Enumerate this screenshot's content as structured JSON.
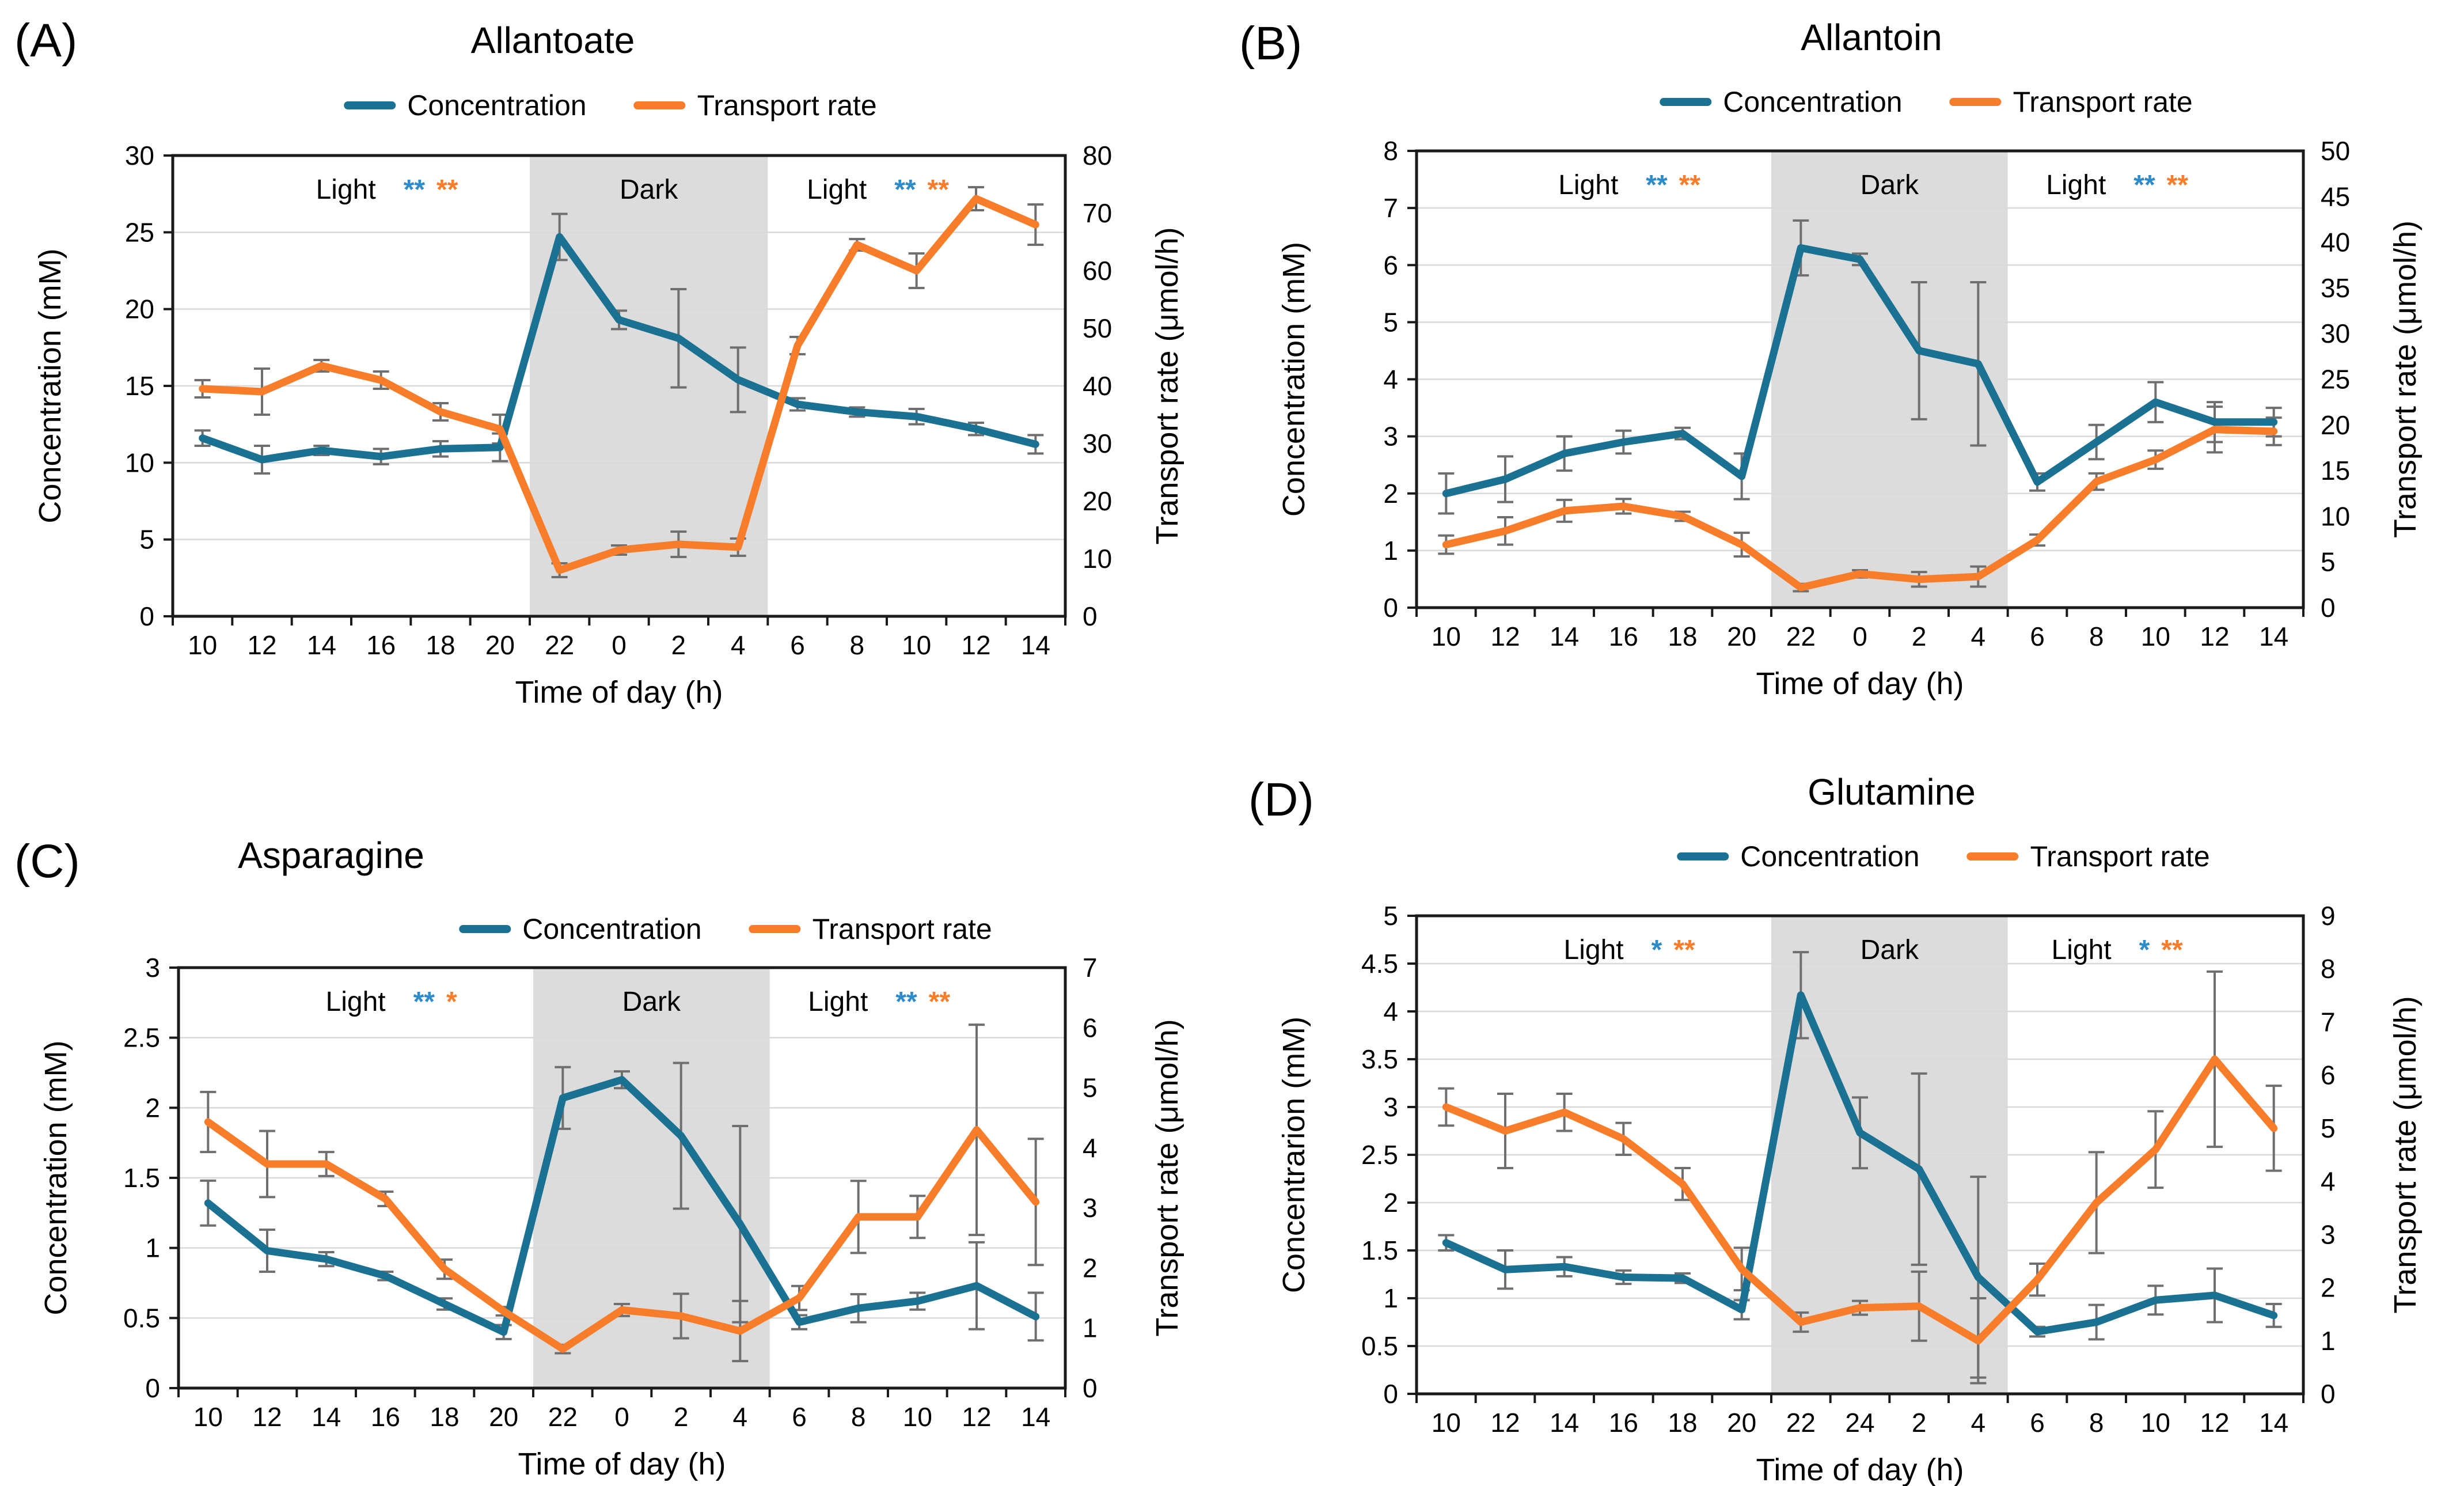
{
  "colors": {
    "concentration": "#1a7191",
    "transport": "#f77d2a",
    "sig_concentration": "#2e8bc9",
    "sig_transport": "#f77d2a",
    "dark_band": "#dcdcdc",
    "gridline": "#d9d9d9",
    "error_bar": "#6f6f6f",
    "frame": "#1a1a1a"
  },
  "figure": {
    "panels": [
      {
        "id": "A",
        "label": "(A)",
        "title": "Allantoate",
        "legend": {
          "concentration": "Concentration",
          "transport": "Transport rate"
        },
        "zones": {
          "light1": {
            "label": "Light",
            "sig_concentration": "**",
            "sig_transport": "**"
          },
          "dark": {
            "label": "Dark"
          },
          "light2": {
            "label": "Light",
            "sig_concentration": "**",
            "sig_transport": "**"
          }
        }
      },
      {
        "id": "B",
        "label": "(B)",
        "title": "Allantoin",
        "legend": {
          "concentration": "Concentration",
          "transport": "Transport rate"
        },
        "zones": {
          "light1": {
            "label": "Light",
            "sig_concentration": "**",
            "sig_transport": "**"
          },
          "dark": {
            "label": "Dark"
          },
          "light2": {
            "label": "Light",
            "sig_concentration": "**",
            "sig_transport": "**"
          }
        }
      },
      {
        "id": "C",
        "label": "(C)",
        "title": "Asparagine",
        "legend": {
          "concentration": "Concentration",
          "transport": "Transport rate"
        },
        "zones": {
          "light1": {
            "label": "Light",
            "sig_concentration": "**",
            "sig_transport": "*"
          },
          "dark": {
            "label": "Dark"
          },
          "light2": {
            "label": "Light",
            "sig_concentration": "**",
            "sig_transport": "**"
          }
        }
      },
      {
        "id": "D",
        "label": "(D)",
        "title": "Glutamine",
        "legend": {
          "concentration": "Concentration",
          "transport": "Transport rate"
        },
        "zones": {
          "light1": {
            "label": "Light",
            "sig_concentration": "*",
            "sig_transport": "**"
          },
          "dark": {
            "label": "Dark"
          },
          "light2": {
            "label": "Light",
            "sig_concentration": "*",
            "sig_transport": "**"
          }
        }
      }
    ]
  },
  "chart_data": [
    {
      "type": "line",
      "title": "Allantoate",
      "x": {
        "label": "Time of day (h)",
        "categories": [
          "10",
          "12",
          "14",
          "16",
          "18",
          "20",
          "22",
          "0",
          "2",
          "4",
          "6",
          "8",
          "10",
          "12",
          "14"
        ]
      },
      "y_left": {
        "label": "Concentration (mM)",
        "range": [
          0,
          30
        ],
        "tick_labels": [
          "0",
          "5",
          "10",
          "15",
          "20",
          "25",
          "30"
        ]
      },
      "y_right": {
        "label": "Transport rate (μmol/h)",
        "range": [
          0,
          80
        ],
        "tick_labels": [
          "0",
          "10",
          "20",
          "30",
          "40",
          "50",
          "60",
          "70",
          "80"
        ]
      },
      "dark_period": {
        "from_hour": 21,
        "to_hour": 5,
        "from_index": 5.5,
        "to_index": 9.5
      },
      "series": [
        {
          "name": "Concentration",
          "axis": "left",
          "color_key": "concentration",
          "values": [
            11.6,
            10.2,
            10.8,
            10.4,
            10.9,
            11.0,
            24.7,
            19.3,
            18.1,
            15.4,
            13.8,
            13.3,
            13.0,
            12.2,
            11.2
          ],
          "errors": [
            0.5,
            0.9,
            0.3,
            0.5,
            0.5,
            0.9,
            1.5,
            0.6,
            3.2,
            2.1,
            0.4,
            0.3,
            0.5,
            0.4,
            0.6
          ]
        },
        {
          "name": "Transport rate",
          "axis": "right",
          "color_key": "transport",
          "values": [
            39.5,
            39.0,
            43.5,
            41.0,
            35.5,
            32.5,
            8.0,
            11.5,
            12.5,
            12.0,
            47.0,
            64.5,
            60.0,
            72.5,
            68.0
          ],
          "errors": [
            1.5,
            4.0,
            1.0,
            1.5,
            1.5,
            2.5,
            1.2,
            0.8,
            2.2,
            1.5,
            1.5,
            1.0,
            3.0,
            2.0,
            3.5
          ]
        }
      ]
    },
    {
      "type": "line",
      "title": "Allantoin",
      "x": {
        "label": "Time of day (h)",
        "categories": [
          "10",
          "12",
          "14",
          "16",
          "18",
          "20",
          "22",
          "0",
          "2",
          "4",
          "6",
          "8",
          "10",
          "12",
          "14"
        ]
      },
      "y_left": {
        "label": "Concentration (mM)",
        "range": [
          0,
          8
        ],
        "tick_labels": [
          "0",
          "1",
          "2",
          "3",
          "4",
          "5",
          "6",
          "7",
          "8"
        ]
      },
      "y_right": {
        "label": "Transport rate (μmol/h)",
        "range": [
          0,
          50
        ],
        "tick_labels": [
          "0",
          "5",
          "10",
          "15",
          "20",
          "25",
          "30",
          "35",
          "40",
          "45",
          "50"
        ]
      },
      "dark_period": {
        "from_hour": 21,
        "to_hour": 5,
        "from_index": 5.5,
        "to_index": 9.5
      },
      "series": [
        {
          "name": "Concentration",
          "axis": "left",
          "color_key": "concentration",
          "values": [
            2.0,
            2.25,
            2.7,
            2.9,
            3.05,
            2.3,
            6.3,
            6.1,
            4.5,
            4.27,
            2.2,
            2.9,
            3.6,
            3.25,
            3.25
          ],
          "errors": [
            0.35,
            0.4,
            0.3,
            0.2,
            0.1,
            0.4,
            0.48,
            0.1,
            1.2,
            1.43,
            0.15,
            0.3,
            0.35,
            0.35,
            0.25
          ]
        },
        {
          "name": "Transport rate",
          "axis": "right",
          "color_key": "transport",
          "values": [
            6.9,
            8.4,
            10.6,
            11.1,
            10.0,
            6.9,
            2.2,
            3.7,
            3.1,
            3.4,
            7.4,
            13.8,
            16.2,
            19.5,
            19.3
          ],
          "errors": [
            1.0,
            1.5,
            1.2,
            0.8,
            0.5,
            1.3,
            0.4,
            0.4,
            0.8,
            1.1,
            0.6,
            0.9,
            1.0,
            2.5,
            1.5
          ]
        }
      ]
    },
    {
      "type": "line",
      "title": "Asparagine",
      "x": {
        "label": "Time of day (h)",
        "categories": [
          "10",
          "12",
          "14",
          "16",
          "18",
          "20",
          "22",
          "0",
          "2",
          "4",
          "6",
          "8",
          "10",
          "12",
          "14"
        ]
      },
      "y_left": {
        "label": "Concentration (mM)",
        "range": [
          0,
          3
        ],
        "tick_labels": [
          "0",
          "0.5",
          "1",
          "1.5",
          "2",
          "2.5",
          "3"
        ]
      },
      "y_right": {
        "label": "Transport rate (μmol/h)",
        "range": [
          0,
          7
        ],
        "tick_labels": [
          "0",
          "1",
          "2",
          "3",
          "4",
          "5",
          "6",
          "7"
        ]
      },
      "dark_period": {
        "from_hour": 21,
        "to_hour": 5,
        "from_index": 5.5,
        "to_index": 9.5
      },
      "series": [
        {
          "name": "Concentration",
          "axis": "left",
          "color_key": "concentration",
          "values": [
            1.32,
            0.98,
            0.92,
            0.8,
            0.6,
            0.4,
            2.07,
            2.2,
            1.8,
            1.17,
            0.47,
            0.57,
            0.62,
            0.73,
            0.51
          ],
          "errors": [
            0.16,
            0.15,
            0.05,
            0.03,
            0.04,
            0.05,
            0.22,
            0.06,
            0.52,
            0.7,
            0.05,
            0.1,
            0.06,
            0.31,
            0.17
          ]
        },
        {
          "name": "Transport rate",
          "axis": "right",
          "color_key": "transport",
          "values": [
            4.43,
            3.73,
            3.73,
            3.15,
            1.98,
            1.28,
            0.65,
            1.3,
            1.2,
            0.95,
            1.5,
            2.85,
            2.85,
            4.3,
            3.1
          ],
          "errors": [
            0.5,
            0.55,
            0.2,
            0.12,
            0.16,
            0.07,
            0.07,
            0.1,
            0.37,
            0.5,
            0.2,
            0.6,
            0.35,
            1.75,
            1.05
          ]
        }
      ]
    },
    {
      "type": "line",
      "title": "Glutamine",
      "x": {
        "label": "Time of day (h)",
        "categories": [
          "10",
          "12",
          "14",
          "16",
          "18",
          "20",
          "22",
          "24",
          "2",
          "4",
          "6",
          "8",
          "10",
          "12",
          "14"
        ]
      },
      "y_left": {
        "label": "Concentrarion (mM)",
        "range": [
          0,
          5
        ],
        "tick_labels": [
          "0",
          "0.5",
          "1",
          "1.5",
          "2",
          "2.5",
          "3",
          "3.5",
          "4",
          "4.5",
          "5"
        ]
      },
      "y_right": {
        "label": "Transport rate (μmol/h)",
        "range": [
          0,
          9
        ],
        "tick_labels": [
          "0",
          "1",
          "2",
          "3",
          "4",
          "5",
          "6",
          "7",
          "8",
          "9"
        ]
      },
      "dark_period": {
        "from_hour": 21,
        "to_hour": 5,
        "from_index": 5.5,
        "to_index": 9.5
      },
      "series": [
        {
          "name": "Concentration",
          "axis": "left",
          "color_key": "concentration",
          "values": [
            1.58,
            1.3,
            1.33,
            1.22,
            1.21,
            0.88,
            4.17,
            2.73,
            2.35,
            1.22,
            0.65,
            0.75,
            0.98,
            1.03,
            0.82
          ],
          "errors": [
            0.08,
            0.2,
            0.1,
            0.07,
            0.05,
            0.1,
            0.45,
            0.37,
            1.0,
            1.05,
            0.05,
            0.18,
            0.15,
            0.28,
            0.12
          ]
        },
        {
          "name": "Transport rate",
          "axis": "right",
          "color_key": "transport",
          "values": [
            5.4,
            4.95,
            5.3,
            4.8,
            3.95,
            2.35,
            1.35,
            1.62,
            1.65,
            1.0,
            2.15,
            3.6,
            4.6,
            6.3,
            5.0
          ],
          "errors": [
            0.35,
            0.7,
            0.35,
            0.3,
            0.3,
            0.4,
            0.18,
            0.13,
            0.65,
            0.8,
            0.3,
            0.95,
            0.72,
            1.65,
            0.8
          ]
        }
      ]
    }
  ]
}
